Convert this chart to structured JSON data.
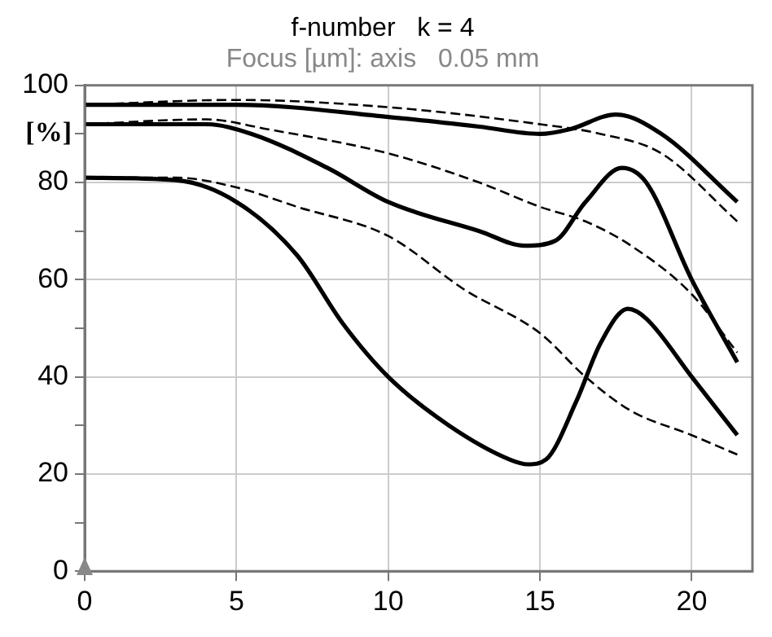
{
  "chart_data": {
    "type": "line",
    "title": "f-number   k = 4",
    "subtitle": "Focus [µm]: axis   0.05 mm",
    "ylabel": "[%]",
    "xlim": [
      0,
      22
    ],
    "xticks": [
      0,
      5,
      10,
      15,
      20
    ],
    "ylim": [
      0,
      100
    ],
    "yticks": [
      0,
      {
        "value": 10,
        "label": null
      },
      20,
      {
        "value": 30,
        "label": null
      },
      40,
      {
        "value": 50,
        "label": null
      },
      60,
      {
        "value": 70,
        "label": null
      },
      80,
      {
        "value": 90,
        "label": null
      },
      100
    ],
    "grid": true,
    "marker": "none",
    "series": [
      {
        "color": "#000000",
        "line_style": "solid",
        "x": [
          0,
          5,
          10,
          13,
          15,
          16,
          17.5,
          19,
          21.5
        ],
        "values": [
          96,
          96,
          93.5,
          91.5,
          90,
          91,
          94,
          90,
          76
        ]
      },
      {
        "color": "#000000",
        "line_style": "dashed",
        "x": [
          0,
          5,
          10,
          15,
          17,
          19,
          21.5
        ],
        "values": [
          96,
          97,
          95.5,
          92,
          90,
          86,
          72
        ]
      },
      {
        "color": "#000000",
        "line_style": "solid",
        "x": [
          0,
          4,
          5.5,
          8,
          10,
          13,
          14.5,
          15.5,
          16.5,
          17.7,
          18.5,
          20,
          21.5
        ],
        "values": [
          92,
          92,
          90,
          83,
          76,
          70,
          67,
          68,
          76,
          83,
          80,
          60,
          43
        ]
      },
      {
        "color": "#000000",
        "line_style": "dashed",
        "x": [
          0,
          4,
          6,
          10,
          13,
          15,
          16.5,
          18,
          20,
          21.5
        ],
        "values": [
          92,
          93,
          91,
          86,
          80,
          75,
          72,
          67,
          57,
          45
        ]
      },
      {
        "color": "#000000",
        "line_style": "solid",
        "x": [
          0,
          3,
          5,
          7,
          8.5,
          10,
          12,
          14,
          14.6,
          15.2,
          16.2,
          17,
          17.9,
          18.5,
          20,
          21.5
        ],
        "values": [
          81,
          80.5,
          76,
          65,
          51,
          40,
          30,
          23,
          22,
          23,
          35,
          47,
          54,
          52,
          40,
          28
        ]
      },
      {
        "color": "#000000",
        "line_style": "dashed",
        "x": [
          0,
          3,
          5,
          7,
          10,
          12.5,
          15,
          16.5,
          18,
          20,
          21.5
        ],
        "values": [
          81,
          81,
          79,
          75,
          69,
          58,
          49,
          40,
          33,
          28,
          24
        ]
      }
    ]
  }
}
